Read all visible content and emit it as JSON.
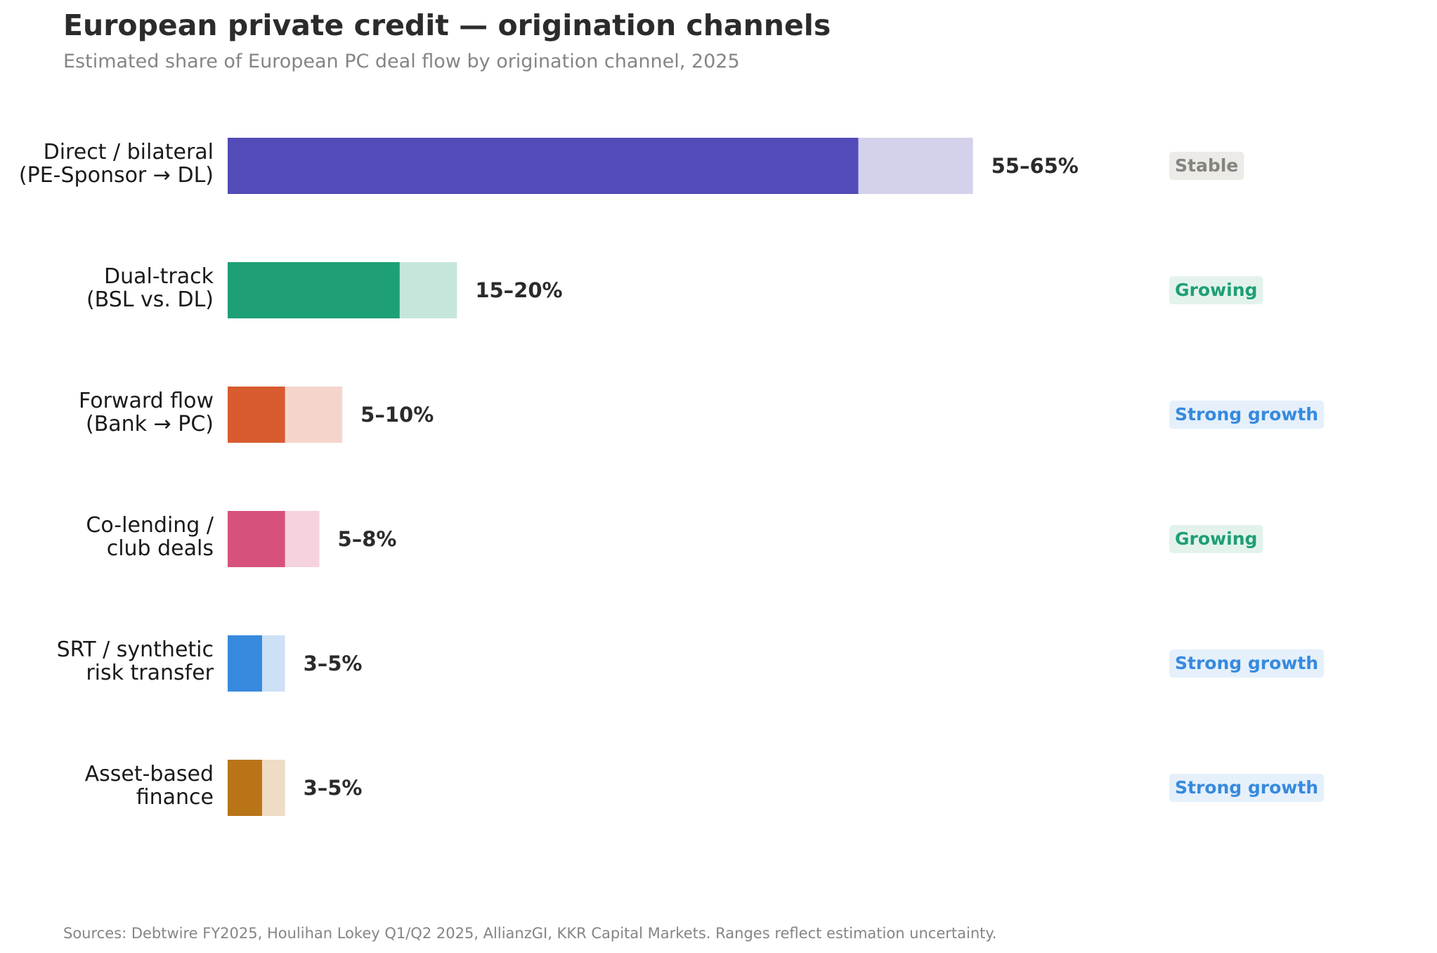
{
  "header": {
    "title": "European private credit — origination channels",
    "subtitle": "Estimated share of European PC deal flow by origination channel, 2025"
  },
  "footer": {
    "source": "Sources: Debtwire FY2025, Houlihan Lokey Q1/Q2 2025, AllianzGI, KKR Capital Markets. Ranges reflect estimation uncertainty."
  },
  "chart_data": {
    "type": "bar",
    "orientation": "horizontal",
    "title": "European private credit — origination channels",
    "subtitle": "Estimated share of European PC deal flow by origination channel, 2025",
    "xlim": [
      0,
      100
    ],
    "grid": false,
    "categories": [
      {
        "label_lines": [
          "Direct / bilateral",
          "(PE-Sponsor → DL)"
        ],
        "low": 55,
        "high": 65,
        "range_label": "55–65%",
        "trend": "Stable",
        "color": "#524bb8",
        "light_color": "#d4d1ed"
      },
      {
        "label_lines": [
          "Dual-track",
          "(BSL vs. DL)"
        ],
        "low": 15,
        "high": 20,
        "range_label": "15–20%",
        "trend": "Growing",
        "color": "#1e9f76",
        "light_color": "#c6e6dc"
      },
      {
        "label_lines": [
          "Forward flow",
          "(Bank → PC)"
        ],
        "low": 5,
        "high": 10,
        "range_label": "5–10%",
        "trend": "Strong growth",
        "color": "#d85b2f",
        "light_color": "#f5d5cb"
      },
      {
        "label_lines": [
          "Co-lending /",
          "club deals"
        ],
        "low": 5,
        "high": 8,
        "range_label": "5–8%",
        "trend": "Growing",
        "color": "#d6527d",
        "light_color": "#f5d3de"
      },
      {
        "label_lines": [
          "SRT / synthetic",
          "risk transfer"
        ],
        "low": 3,
        "high": 5,
        "range_label": "3–5%",
        "trend": "Strong growth",
        "color": "#378ade",
        "light_color": "#cde1f6"
      },
      {
        "label_lines": [
          "Asset-based",
          "finance"
        ],
        "low": 3,
        "high": 5,
        "range_label": "3–5%",
        "trend": "Strong growth",
        "color": "#b97418",
        "light_color": "#eedcc4"
      }
    ],
    "trend_styles": {
      "Stable": {
        "text": "#858580",
        "bg": "#ecebe7"
      },
      "Growing": {
        "text": "#1e9f76",
        "bg": "#e3f3ec"
      },
      "Strong growth": {
        "text": "#378ade",
        "bg": "#e5f0fb"
      }
    }
  }
}
